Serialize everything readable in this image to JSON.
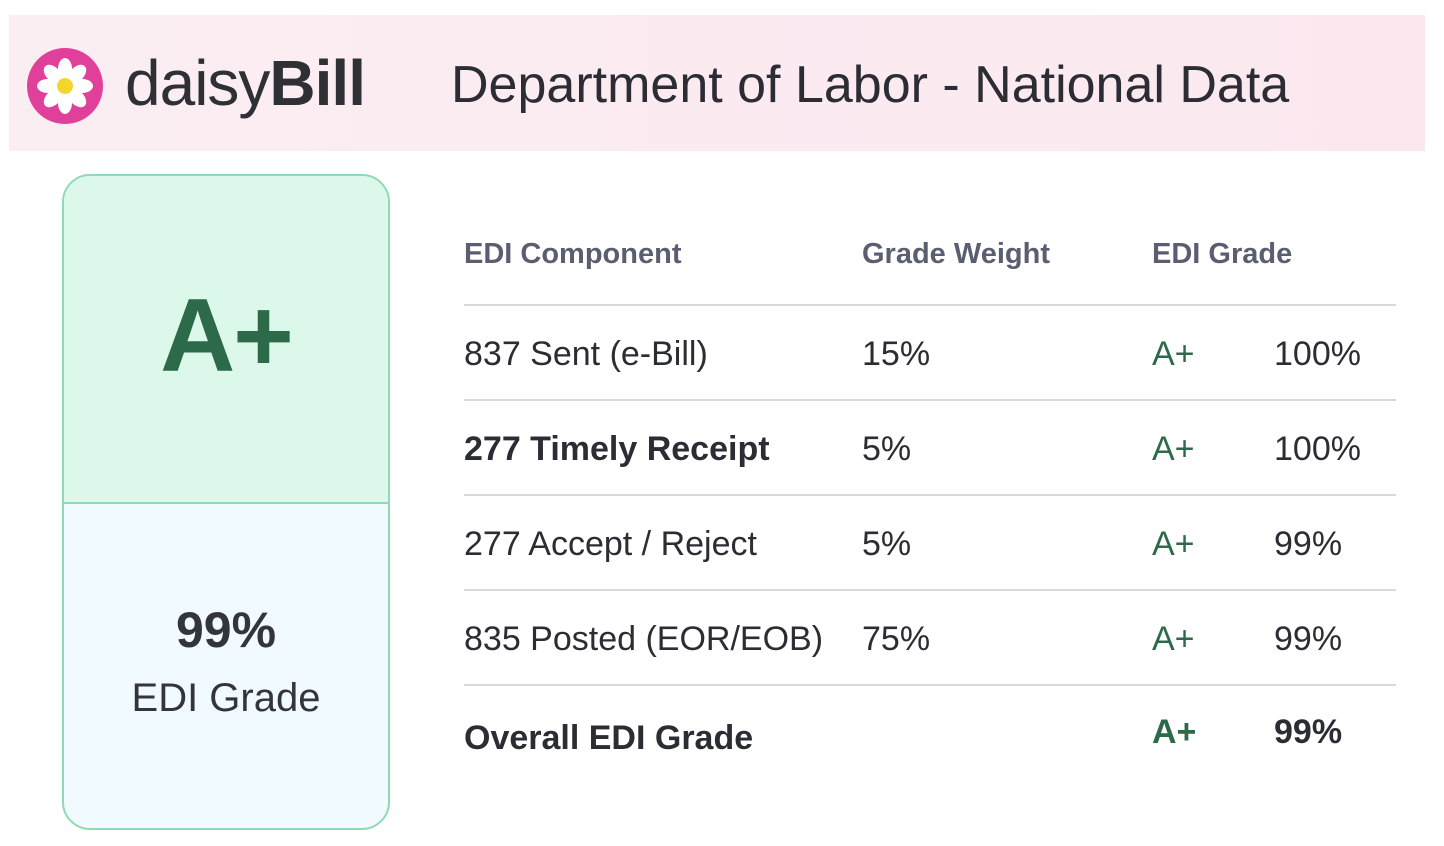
{
  "header": {
    "logo_light": "daisy",
    "logo_bold": "Bill",
    "title": "Department of Labor - National Data",
    "brand_color": "#e0409a"
  },
  "grade_card": {
    "letter": "A+",
    "percent": "99%",
    "caption": "EDI Grade",
    "accent_color": "#2c6a4a"
  },
  "table": {
    "headers": {
      "component": "EDI Component",
      "weight": "Grade Weight",
      "grade": "EDI Grade"
    },
    "rows": [
      {
        "component": "837 Sent (e-Bill)",
        "weight": "15%",
        "grade": "A+",
        "percent": "100%"
      },
      {
        "component": "277 Timely Receipt",
        "weight": "5%",
        "grade": "A+",
        "percent": "100%"
      },
      {
        "component": "277 Accept / Reject",
        "weight": "5%",
        "grade": "A+",
        "percent": "99%"
      },
      {
        "component": "835 Posted (EOR/EOB)",
        "weight": "75%",
        "grade": "A+",
        "percent": "99%"
      }
    ],
    "overall": {
      "label": "Overall EDI Grade",
      "grade": "A+",
      "percent": "99%"
    }
  }
}
